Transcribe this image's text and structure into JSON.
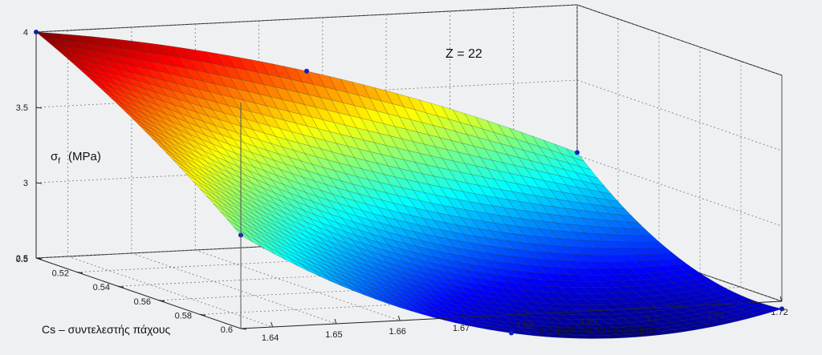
{
  "chart_data": {
    "type": "surface",
    "annotation": "Z = 22",
    "zlabel_symbol": "σ",
    "zlabel_sub": "f",
    "zlabel_unit": "(MPa)",
    "xlabel": "ε – βαθμός επικάλυψης",
    "ylabel": "Cs – συντελεστής πάχους",
    "x_ticks": [
      "1.64",
      "1.65",
      "1.66",
      "1.67",
      "1.68",
      "1.69",
      "1.7",
      "1.71",
      "1.72"
    ],
    "y_ticks": [
      "0.5",
      "0.52",
      "0.54",
      "0.56",
      "0.58",
      "0.6"
    ],
    "z_ticks": [
      "2.5",
      "3",
      "3.5",
      "4"
    ],
    "xlim": [
      1.635,
      1.72
    ],
    "ylim": [
      0.5,
      0.6
    ],
    "zlim": [
      2.5,
      4.0
    ],
    "grid": true,
    "colormap": "jet",
    "corner_points": [
      {
        "x": 1.635,
        "y": 0.5,
        "z": 4.0
      },
      {
        "x": 1.72,
        "y": 0.5,
        "z": 3.02
      },
      {
        "x": 1.635,
        "y": 0.6,
        "z": 3.12
      },
      {
        "x": 1.72,
        "y": 0.6,
        "z": 2.45
      }
    ],
    "edge_midpoints": [
      {
        "x": 1.6775,
        "y": 0.5,
        "z": 3.65
      },
      {
        "x": 1.6775,
        "y": 0.6,
        "z": 2.38
      },
      {
        "x": 1.635,
        "y": 0.55,
        "z": 3.62
      },
      {
        "x": 1.72,
        "y": 0.55,
        "z": 2.55
      }
    ],
    "center_point": {
      "x": 1.6775,
      "y": 0.55,
      "z": 2.78
    }
  }
}
